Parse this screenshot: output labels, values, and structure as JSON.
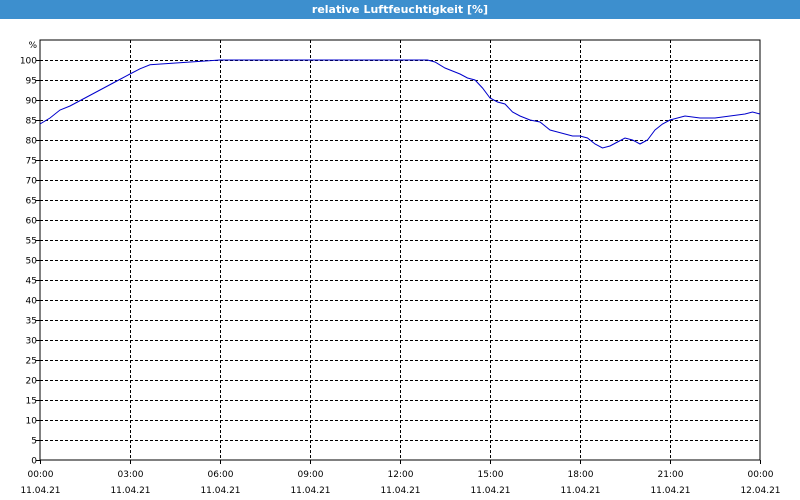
{
  "chart_data": {
    "type": "line",
    "title": "relative Luftfeuchtigkeit [%]",
    "ylabel": "%",
    "ylim": [
      0,
      100
    ],
    "ytick_step": 5,
    "xlim": [
      "11.04.21 00:00",
      "12.04.21 00:00"
    ],
    "x_ticks": [
      {
        "time": "00:00",
        "date": "11.04.21"
      },
      {
        "time": "03:00",
        "date": "11.04.21"
      },
      {
        "time": "06:00",
        "date": "11.04.21"
      },
      {
        "time": "09:00",
        "date": "11.04.21"
      },
      {
        "time": "12:00",
        "date": "11.04.21"
      },
      {
        "time": "15:00",
        "date": "11.04.21"
      },
      {
        "time": "18:00",
        "date": "11.04.21"
      },
      {
        "time": "21:00",
        "date": "11.04.21"
      },
      {
        "time": "00:00",
        "date": "12.04.21"
      }
    ],
    "grid": true,
    "line_color": "#0000cc",
    "series": [
      {
        "x": [
          "11.04.21 00:00",
          "11.04.21 00:20",
          "11.04.21 00:40",
          "11.04.21 01:00",
          "11.04.21 01:30",
          "11.04.21 02:00",
          "11.04.21 02:30",
          "11.04.21 03:00",
          "11.04.21 03:20",
          "11.04.21 03:40",
          "11.04.21 06:00",
          "11.04.21 09:00",
          "11.04.21 12:00",
          "11.04.21 12:55",
          "11.04.21 13:10",
          "11.04.21 13:30",
          "11.04.21 14:00",
          "11.04.21 14:15",
          "11.04.21 14:30",
          "11.04.21 14:45",
          "11.04.21 15:00",
          "11.04.21 15:15",
          "11.04.21 15:30",
          "11.04.21 15:45",
          "11.04.21 16:00",
          "11.04.21 16:20",
          "11.04.21 16:40",
          "11.04.21 17:00",
          "11.04.21 17:15",
          "11.04.21 17:30",
          "11.04.21 17:45",
          "11.04.21 18:00",
          "11.04.21 18:15",
          "11.04.21 18:30",
          "11.04.21 18:45",
          "11.04.21 19:00",
          "11.04.21 19:15",
          "11.04.21 19:30",
          "11.04.21 19:45",
          "11.04.21 20:00",
          "11.04.21 20:15",
          "11.04.21 20:30",
          "11.04.21 20:45",
          "11.04.21 21:00",
          "11.04.21 21:15",
          "11.04.21 21:30",
          "11.04.21 22:00",
          "11.04.21 22:30",
          "11.04.21 23:00",
          "11.04.21 23:30",
          "11.04.21 23:45",
          "12.04.21 00:00"
        ],
        "y": [
          84,
          85.5,
          87.5,
          88.5,
          90.5,
          92.5,
          94.5,
          96.5,
          97.8,
          98.8,
          100,
          100,
          100,
          100,
          99.5,
          98,
          96.5,
          95.5,
          95,
          93,
          90.5,
          89.5,
          89,
          87,
          86,
          85,
          84.5,
          82.5,
          82,
          81.5,
          81,
          81,
          80.5,
          79,
          78,
          78.5,
          79.5,
          80.5,
          80,
          79,
          80,
          82.5,
          84,
          85,
          85.5,
          86,
          85.5,
          85.5,
          86,
          86.5,
          87,
          86.5
        ]
      }
    ]
  }
}
